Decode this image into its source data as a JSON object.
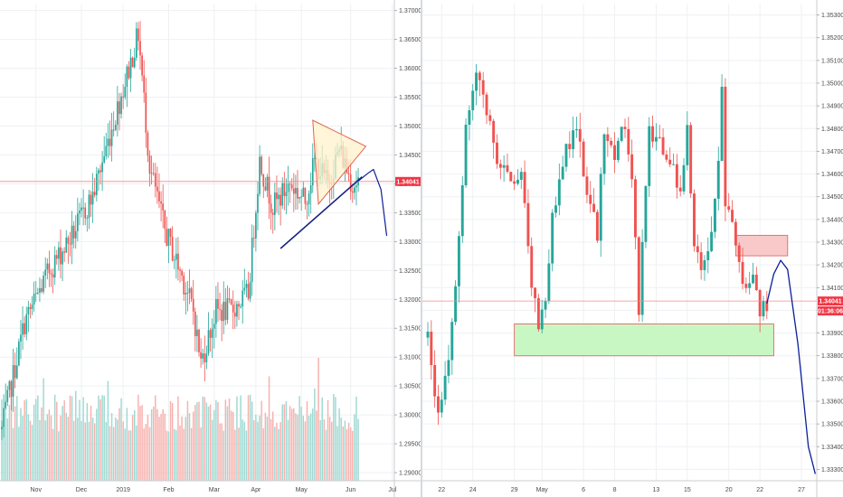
{
  "colors": {
    "up": "#26a69a",
    "down": "#ef5350",
    "volume_up": "#9fd9d2",
    "volume_down": "#f7b1ae",
    "grid": "#eef0f3",
    "price_line": "#f28b8b",
    "price_tag": "#f23645",
    "projection": "#0b1e9a",
    "trendline": "#1a237e",
    "triangle_fill": "#fff2cc",
    "triangle_stroke": "#e2634f",
    "support_fill": "#c9f7c4",
    "support_stroke": "#e57373",
    "resistance_fill": "#f9c9c9",
    "resistance_stroke": "#e57373"
  },
  "chart_data": [
    {
      "type": "candlestick",
      "timeframe": "daily",
      "y_ticks": [
        "1.37000",
        "1.36500",
        "1.36000",
        "1.35500",
        "1.35000",
        "1.34500",
        "1.34000",
        "1.33500",
        "1.33000",
        "1.32500",
        "1.32000",
        "1.31500",
        "1.31000",
        "1.30500",
        "1.30000",
        "1.29500",
        "1.29000"
      ],
      "y_tick_values": [
        1.37,
        1.365,
        1.36,
        1.355,
        1.35,
        1.345,
        1.34,
        1.335,
        1.33,
        1.325,
        1.32,
        1.315,
        1.31,
        1.305,
        1.3,
        1.295,
        1.29
      ],
      "ylim": [
        1.2886,
        1.3712
      ],
      "x_ticks": [
        "Nov",
        "Dec",
        "2019",
        "Feb",
        "Mar",
        "Apr",
        "May",
        "Jun",
        "Jul"
      ],
      "price_tag": "1.34041",
      "current_price": 1.34041,
      "series": {
        "bars": 170,
        "start_close": 1.2975,
        "anchors": [
          [
            0,
            1.2975
          ],
          [
            12,
            1.316
          ],
          [
            25,
            1.325
          ],
          [
            37,
            1.331
          ],
          [
            48,
            1.338
          ],
          [
            60,
            1.352
          ],
          [
            68,
            1.361
          ],
          [
            72,
            1.366
          ],
          [
            78,
            1.343
          ],
          [
            86,
            1.332
          ],
          [
            95,
            1.324
          ],
          [
            101,
            1.318
          ],
          [
            105,
            1.309
          ],
          [
            113,
            1.318
          ],
          [
            121,
            1.318
          ],
          [
            130,
            1.321
          ],
          [
            136,
            1.344
          ],
          [
            143,
            1.336
          ],
          [
            152,
            1.34
          ],
          [
            160,
            1.337
          ],
          [
            165,
            1.344
          ],
          [
            172,
            1.34
          ],
          [
            178,
            1.346
          ],
          [
            185,
            1.34
          ],
          [
            188,
            1.3404
          ]
        ],
        "volume_max": 100
      },
      "annotations": {
        "symmetrical_triangle": {
          "points": [
            [
              164,
              1.351
            ],
            [
              192,
              1.3465
            ],
            [
              167,
              1.3365
            ]
          ]
        },
        "support_trendline": {
          "points": [
            [
              147,
              1.3288
            ],
            [
              190,
              1.3412
            ]
          ]
        },
        "projected_path": {
          "points": [
            [
              188,
              1.3405
            ],
            [
              193,
              1.3418
            ],
            [
              196,
              1.3425
            ],
            [
              200,
              1.339
            ],
            [
              203,
              1.331
            ]
          ]
        }
      }
    },
    {
      "type": "candlestick",
      "timeframe": "hourly",
      "y_ticks": [
        "1.35300",
        "1.35200",
        "1.35100",
        "1.35000",
        "1.34900",
        "1.34800",
        "1.34700",
        "1.34600",
        "1.34500",
        "1.34400",
        "1.34300",
        "1.34200",
        "1.34100",
        "1.34000",
        "1.33900",
        "1.33800",
        "1.33700",
        "1.33600",
        "1.33500",
        "1.33400",
        "1.33300"
      ],
      "y_tick_values": [
        1.353,
        1.352,
        1.351,
        1.35,
        1.349,
        1.348,
        1.347,
        1.346,
        1.345,
        1.344,
        1.343,
        1.342,
        1.341,
        1.34,
        1.339,
        1.338,
        1.337,
        1.336,
        1.335,
        1.334,
        1.333
      ],
      "ylim": [
        1.3325,
        1.3535
      ],
      "x_ticks": [
        "22",
        "24",
        "29",
        "May",
        "6",
        "8",
        "13",
        "15",
        "20",
        "22",
        "27"
      ],
      "price_tag": "1.34041",
      "countdown": "01:36:06",
      "current_price": 1.34041,
      "series": {
        "bars": 92,
        "anchors": [
          [
            0,
            1.3388
          ],
          [
            3,
            1.3355
          ],
          [
            6,
            1.3378
          ],
          [
            8,
            1.3412
          ],
          [
            11,
            1.3482
          ],
          [
            14,
            1.3502
          ],
          [
            17,
            1.3488
          ],
          [
            20,
            1.3468
          ],
          [
            24,
            1.3455
          ],
          [
            27,
            1.3465
          ],
          [
            30,
            1.3412
          ],
          [
            32,
            1.339
          ],
          [
            34,
            1.3402
          ],
          [
            36,
            1.344
          ],
          [
            40,
            1.347
          ],
          [
            43,
            1.3482
          ],
          [
            46,
            1.3448
          ],
          [
            49,
            1.3435
          ],
          [
            51,
            1.348
          ],
          [
            54,
            1.347
          ],
          [
            57,
            1.348
          ],
          [
            59,
            1.3458
          ],
          [
            61,
            1.34
          ],
          [
            62,
            1.343
          ],
          [
            64,
            1.3478
          ],
          [
            67,
            1.3472
          ],
          [
            70,
            1.3468
          ],
          [
            73,
            1.345
          ],
          [
            75,
            1.3478
          ],
          [
            77,
            1.3428
          ],
          [
            79,
            1.3418
          ],
          [
            82,
            1.3436
          ],
          [
            84,
            1.3462
          ],
          [
            85,
            1.35
          ],
          [
            86,
            1.3445
          ],
          [
            88,
            1.3436
          ],
          [
            90,
            1.3418
          ],
          [
            92,
            1.3412
          ],
          [
            94,
            1.342
          ],
          [
            96,
            1.34
          ],
          [
            98,
            1.3404
          ]
        ]
      },
      "annotations": {
        "resistance_zone": {
          "price_range": [
            1.3424,
            1.3433
          ]
        },
        "support_zone": {
          "price_range": [
            1.338,
            1.3394
          ]
        },
        "projected_path": {
          "points": [
            [
              98,
              1.3403
            ],
            [
              100,
              1.3416
            ],
            [
              102,
              1.3422
            ],
            [
              104,
              1.3418
            ],
            [
              107,
              1.3385
            ],
            [
              110,
              1.334
            ],
            [
              112,
              1.3328
            ]
          ]
        }
      }
    }
  ]
}
